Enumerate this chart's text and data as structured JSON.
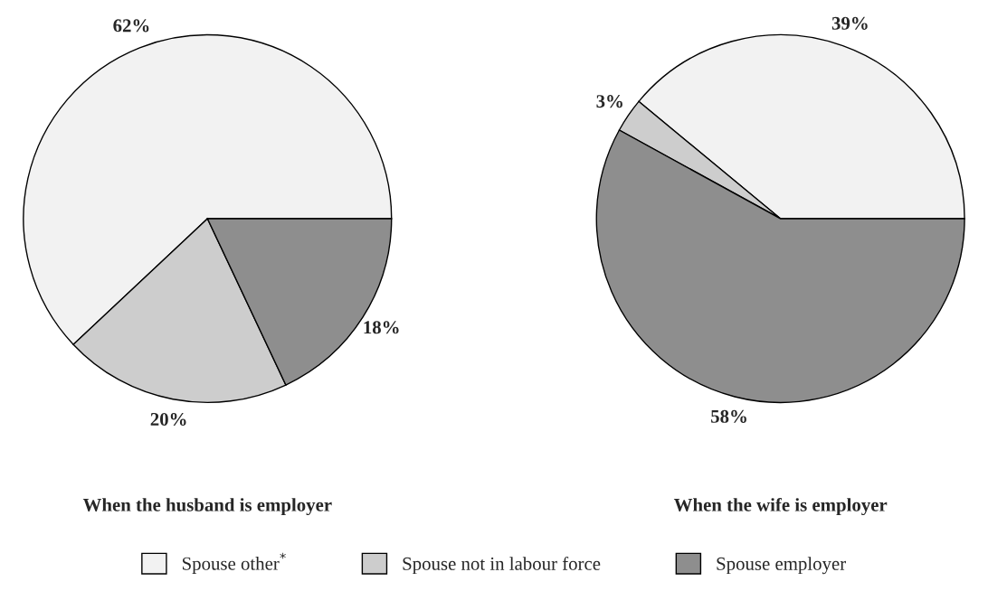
{
  "chart_data": [
    {
      "type": "pie",
      "title": "When the husband is employer",
      "categories": [
        "Spouse other$^{*}$",
        "Spouse not in labour force",
        "Spouse employer"
      ],
      "values": [
        62,
        20,
        18
      ],
      "colors": [
        "#f2f2f2",
        "#cdcdcd",
        "#8e8e8e"
      ],
      "value_labels": [
        "62%",
        "20%",
        "18%"
      ],
      "legend": "bottom"
    },
    {
      "type": "pie",
      "title": "When the wife is employer",
      "categories": [
        null,
        null,
        null
      ],
      "values": [
        39,
        3,
        58
      ],
      "colors": [
        "#f2f2f2",
        "#cdcdcd",
        "#8e8e8e"
      ],
      "value_labels": [
        "39%",
        "3%",
        "58%"
      ]
    }
  ]
}
